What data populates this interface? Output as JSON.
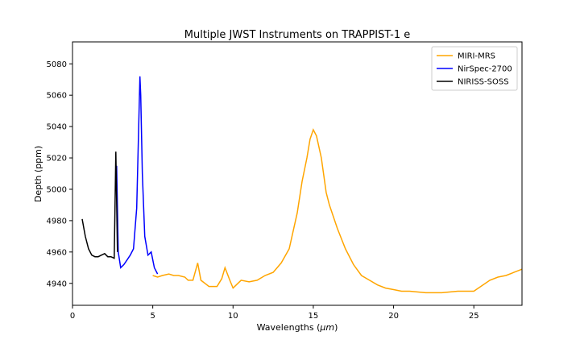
{
  "chart_data": {
    "type": "line",
    "title": "Multiple JWST Instruments on TRAPPIST-1 e",
    "xlabel": "Wavelengths (",
    "xlabel_unit": "μm",
    "xlabel_close": ")",
    "ylabel": "Depth (ppm)",
    "xlim": [
      0,
      28
    ],
    "ylim": [
      4926,
      5094
    ],
    "xticks": [
      0,
      5,
      10,
      15,
      20,
      25
    ],
    "yticks": [
      4940,
      4960,
      4980,
      5000,
      5020,
      5040,
      5060,
      5080
    ],
    "legend_position": "top-right",
    "series": [
      {
        "name": "MIRI-MRS",
        "color": "#ffa500",
        "x": [
          5.0,
          5.3,
          5.6,
          6.0,
          6.3,
          6.6,
          7.0,
          7.2,
          7.5,
          7.8,
          8.0,
          8.5,
          9.0,
          9.3,
          9.5,
          9.8,
          10.0,
          10.5,
          11.0,
          11.5,
          12.0,
          12.5,
          13.0,
          13.5,
          14.0,
          14.3,
          14.6,
          14.8,
          15.0,
          15.2,
          15.5,
          15.8,
          16.0,
          16.5,
          17.0,
          17.5,
          18.0,
          18.5,
          19.0,
          19.5,
          20.0,
          20.5,
          21.0,
          22.0,
          23.0,
          24.0,
          25.0,
          26.0,
          26.5,
          27.0,
          27.5,
          28.0
        ],
        "y": [
          4945,
          4944,
          4945,
          4946,
          4945,
          4945,
          4944,
          4942,
          4942,
          4953,
          4942,
          4938,
          4938,
          4943,
          4950,
          4942,
          4937,
          4942,
          4941,
          4942,
          4945,
          4947,
          4953,
          4962,
          4985,
          5005,
          5020,
          5032,
          5038,
          5034,
          5020,
          4998,
          4990,
          4975,
          4962,
          4952,
          4945,
          4942,
          4939,
          4937,
          4936,
          4935,
          4935,
          4934,
          4934,
          4935,
          4935,
          4942,
          4944,
          4945,
          4947,
          4949
        ]
      },
      {
        "name": "NirSpec-2700",
        "color": "#0000ff",
        "x": [
          2.7,
          2.75,
          2.85,
          3.0,
          3.2,
          3.4,
          3.6,
          3.8,
          4.0,
          4.1,
          4.2,
          4.25,
          4.35,
          4.5,
          4.7,
          4.9,
          5.1,
          5.3
        ],
        "y": [
          5000,
          5015,
          4960,
          4950,
          4952,
          4955,
          4958,
          4962,
          4988,
          5030,
          5072,
          5060,
          5010,
          4970,
          4958,
          4960,
          4950,
          4946
        ]
      },
      {
        "name": "NIRISS-SOSS",
        "color": "#000000",
        "x": [
          0.6,
          0.8,
          1.0,
          1.2,
          1.4,
          1.6,
          1.8,
          2.0,
          2.2,
          2.4,
          2.6,
          2.7,
          2.8
        ],
        "y": [
          4981,
          4970,
          4962,
          4958,
          4957,
          4957,
          4958,
          4959,
          4957,
          4957,
          4956,
          5024,
          4960
        ]
      }
    ]
  }
}
